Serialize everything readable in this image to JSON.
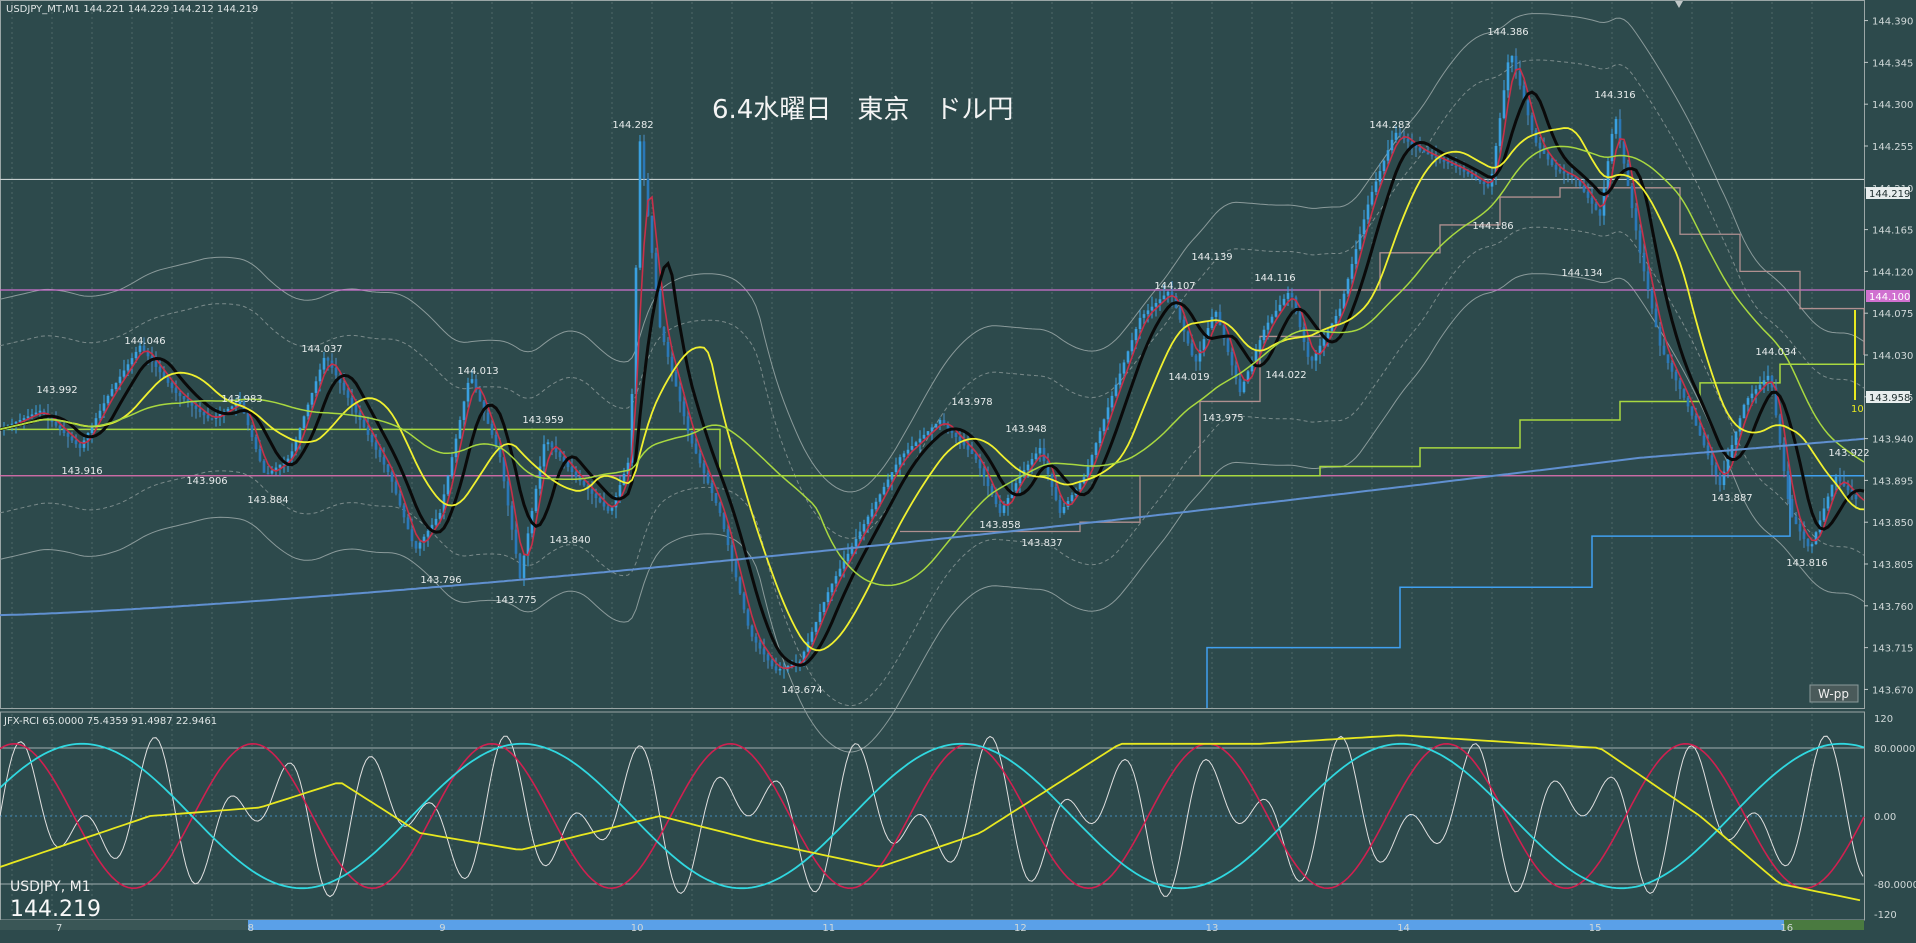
{
  "header": {
    "symbol_line": "USDJPY_MT,M1  144.221 144.229 144.212 144.219",
    "title": "6.4水曜日　東京　ドル円"
  },
  "indicator": {
    "header": "JFX-RCI 65.0000 75.4359 91.4987 22.9461",
    "levels": [
      "120",
      "80.0000",
      "0.00",
      "-80.0000",
      "-120"
    ],
    "bottom_symbol": "USDJPY, M1",
    "bottom_price": "144.219"
  },
  "badges": {
    "current_price": "144.219",
    "pivot_price": "144.100",
    "bid_price": "143.958",
    "wpp_label": "W-pp",
    "ten_label": "10"
  },
  "colors": {
    "background": "#2d4a4c",
    "candle_up": "#3aa0e0",
    "candle_down": "#4a90c8",
    "ma_black": "#0a0a0a",
    "ma_yellow": "#f0f030",
    "ma_green": "#a8d840",
    "ma_blue": "#6090d0",
    "ma_red": "#c8304a",
    "pivot_magenta": "#d070d0",
    "rci_white": "#e0e0e0",
    "rci_red": "#d02050",
    "rci_cyan": "#30d8e0",
    "rci_yellow": "#e8e820"
  },
  "chart_data": {
    "type": "candlestick",
    "timeframe": "M1",
    "y_axis": {
      "ticks": [
        "144.390",
        "144.345",
        "144.300",
        "144.255",
        "144.210",
        "144.165",
        "144.120",
        "144.075",
        "144.030",
        "143.985",
        "143.940",
        "143.895",
        "143.850",
        "143.805",
        "143.760",
        "143.715",
        "143.670"
      ],
      "range": [
        143.65,
        144.41
      ]
    },
    "x_axis": {
      "ticks": [
        "7",
        "8",
        "9",
        "10",
        "11",
        "12",
        "13",
        "14",
        "15",
        "16"
      ]
    },
    "price_annotations": [
      "144.046",
      "143.992",
      "143.916",
      "143.983",
      "143.906",
      "144.037",
      "143.884",
      "144.013",
      "143.796",
      "143.959",
      "143.775",
      "143.840",
      "144.282",
      "143.674",
      "143.978",
      "143.948",
      "143.858",
      "143.837",
      "144.107",
      "144.139",
      "144.019",
      "143.975",
      "144.116",
      "144.022",
      "144.283",
      "144.386",
      "144.186",
      "144.316",
      "144.134",
      "144.034",
      "143.887",
      "143.922",
      "143.816"
    ],
    "horizontal_lines": [
      {
        "name": "current",
        "value": 144.219
      },
      {
        "name": "pivot",
        "value": 144.1
      },
      {
        "name": "pink",
        "value": 143.9
      }
    ]
  }
}
